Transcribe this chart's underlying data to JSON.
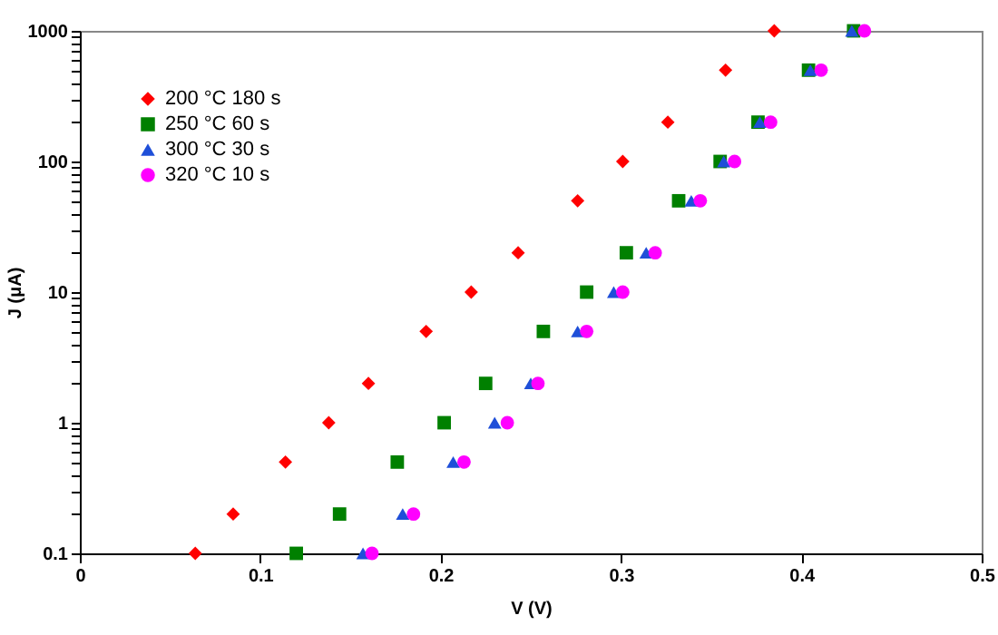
{
  "chart_data": {
    "type": "scatter",
    "xlabel": "V (V)",
    "ylabel": "J (μA)",
    "log": "y",
    "grid": false,
    "legend": "top left",
    "xlim": [
      0,
      0.5
    ],
    "xticks": [
      0,
      0.1,
      0.2,
      0.3,
      0.4,
      0.5
    ],
    "ylim": [
      0.1,
      1000
    ],
    "yticks": [
      0.1,
      {
        "value": 0.2,
        "label": null
      },
      {
        "value": 0.3,
        "label": null
      },
      {
        "value": 0.4,
        "label": null
      },
      {
        "value": 0.5,
        "label": null
      },
      {
        "value": 0.6,
        "label": null
      },
      {
        "value": 0.7,
        "label": null
      },
      {
        "value": 0.8,
        "label": null
      },
      {
        "value": 0.9,
        "label": null
      },
      1,
      {
        "value": 2,
        "label": null
      },
      {
        "value": 3,
        "label": null
      },
      {
        "value": 4,
        "label": null
      },
      {
        "value": 5,
        "label": null
      },
      {
        "value": 6,
        "label": null
      },
      {
        "value": 7,
        "label": null
      },
      {
        "value": 8,
        "label": null
      },
      {
        "value": 9,
        "label": null
      },
      10,
      {
        "value": 20,
        "label": null
      },
      {
        "value": 30,
        "label": null
      },
      {
        "value": 40,
        "label": null
      },
      {
        "value": 50,
        "label": null
      },
      {
        "value": 60,
        "label": null
      },
      {
        "value": 70,
        "label": null
      },
      {
        "value": 80,
        "label": null
      },
      {
        "value": 90,
        "label": null
      },
      100,
      {
        "value": 200,
        "label": null
      },
      {
        "value": 300,
        "label": null
      },
      {
        "value": 400,
        "label": null
      },
      {
        "value": 500,
        "label": null
      },
      {
        "value": 600,
        "label": null
      },
      {
        "value": 700,
        "label": null
      },
      {
        "value": 800,
        "label": null
      },
      {
        "value": 900,
        "label": null
      },
      1000
    ],
    "series": [
      {
        "name": "200 °C 180 s",
        "color": "#ff0000",
        "marker": "diamond",
        "x": [
          0.064,
          0.085,
          0.114,
          0.138,
          0.16,
          0.192,
          0.217,
          0.243,
          0.276,
          0.301,
          0.326,
          0.358,
          0.385
        ],
        "values": [
          0.1,
          0.2,
          0.5,
          1,
          2,
          5,
          10,
          20,
          50,
          100,
          200,
          500,
          1000
        ]
      },
      {
        "name": "250 °C 60 s",
        "color": "#008000",
        "marker": "square",
        "x": [
          0.12,
          0.144,
          0.176,
          0.202,
          0.225,
          0.257,
          0.281,
          0.303,
          0.332,
          0.355,
          0.376,
          0.404,
          0.429
        ],
        "values": [
          0.1,
          0.2,
          0.5,
          1,
          2,
          5,
          10,
          20,
          50,
          100,
          200,
          500,
          1000
        ]
      },
      {
        "name": "300 °C 30 s",
        "color": "#1f4fd8",
        "marker": "triangle",
        "x": [
          0.157,
          0.179,
          0.207,
          0.23,
          0.25,
          0.276,
          0.296,
          0.314,
          0.339,
          0.357,
          0.377,
          0.405,
          0.428
        ],
        "values": [
          0.1,
          0.2,
          0.5,
          1,
          2,
          5,
          10,
          20,
          50,
          100,
          200,
          500,
          1000
        ]
      },
      {
        "name": "320 °C 10 s",
        "color": "#ff00ff",
        "marker": "circle",
        "x": [
          0.162,
          0.185,
          0.213,
          0.237,
          0.254,
          0.281,
          0.301,
          0.319,
          0.344,
          0.363,
          0.383,
          0.411,
          0.435
        ],
        "values": [
          0.1,
          0.2,
          0.5,
          1,
          2,
          5,
          10,
          20,
          50,
          100,
          200,
          500,
          1000
        ]
      }
    ]
  }
}
